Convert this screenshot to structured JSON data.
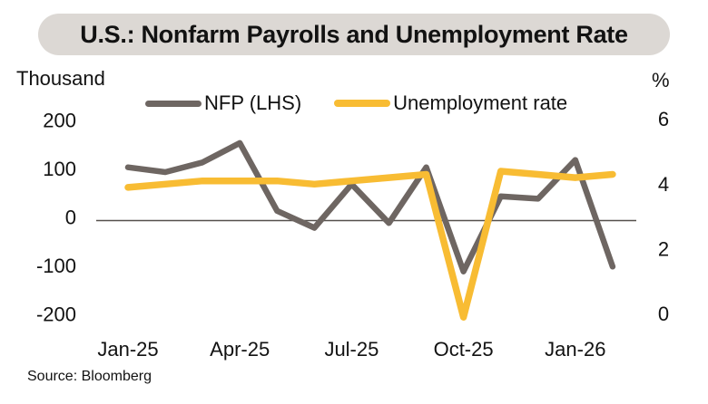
{
  "title": "U.S.: Nonfarm Payrolls and Unemployment Rate",
  "axis_units": {
    "left": "Thousand",
    "right": "%"
  },
  "source": "Source: Bloomberg",
  "colors": {
    "nfp": "#6E6662",
    "unemployment": "#F8BC33",
    "zero_line": "#55504C",
    "title_bg": "#DCD8D4",
    "text": "#121212"
  },
  "legend": [
    {
      "label": "NFP (LHS)",
      "series": "nfp"
    },
    {
      "label": "Unemployment rate",
      "series": "unemployment"
    }
  ],
  "chart_data": {
    "type": "line",
    "x": [
      "Jan-25",
      "Feb-25",
      "Mar-25",
      "Apr-25",
      "May-25",
      "Jun-25",
      "Jul-25",
      "Aug-25",
      "Sep-25",
      "Oct-25",
      "Nov-25",
      "Dec-25",
      "Jan-26",
      "Feb-26"
    ],
    "x_tick_labels": [
      "Jan-25",
      "Apr-25",
      "Jul-25",
      "Oct-25",
      "Jan-26"
    ],
    "x_tick_indices": [
      0,
      3,
      6,
      9,
      12
    ],
    "series": [
      {
        "name": "NFP (LHS)",
        "axis": "left",
        "color_key": "nfp",
        "values": [
          110,
          100,
          120,
          160,
          20,
          -15,
          75,
          -5,
          110,
          -105,
          50,
          45,
          125,
          -95
        ]
      },
      {
        "name": "Unemployment rate",
        "axis": "right",
        "color_key": "unemployment",
        "values": [
          4.0,
          4.1,
          4.2,
          4.2,
          4.2,
          4.1,
          4.2,
          4.3,
          4.4,
          0.0,
          4.5,
          4.4,
          4.3,
          4.4
        ]
      }
    ],
    "left_axis": {
      "unit": "Thousand",
      "ticks": [
        200,
        100,
        0,
        -100,
        -200
      ],
      "range": [
        -200,
        220
      ]
    },
    "right_axis": {
      "unit": "%",
      "ticks": [
        6,
        4,
        2,
        0
      ],
      "range": [
        0,
        6.4
      ]
    },
    "zero_gridline": true,
    "grid": false,
    "legend_position": "top"
  }
}
